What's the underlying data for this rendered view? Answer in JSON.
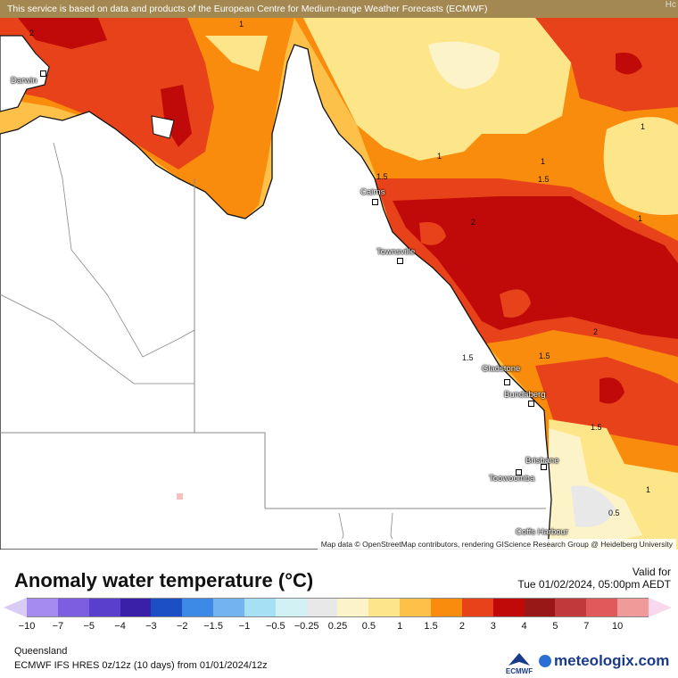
{
  "banner": "This service is based on data and products of the European Centre for Medium-range Weather Forecasts (ECMWF)",
  "corner_text": "Hc",
  "attribution": "Map data © OpenStreetMap contributors, rendering GIScience Research Group @ Heidelberg University",
  "title": "Anomaly water temperature (°C)",
  "valid_label": "Valid for",
  "valid_time": "Tue 01/02/2024, 05:00pm AEDT",
  "region": "Queensland",
  "model_info": "ECMWF IFS HRES 0z/12z (10 days) from 01/01/2024/12z",
  "ecmwf_label": "ECMWF",
  "brand": "meteologix.com",
  "cities": [
    {
      "name": "Darwin"
    },
    {
      "name": "Cairns"
    },
    {
      "name": "Townsville"
    },
    {
      "name": "Gladstone"
    },
    {
      "name": "Bundaberg"
    },
    {
      "name": "Brisbane"
    },
    {
      "name": "Toowoomba"
    },
    {
      "name": "Coffs Harbour"
    }
  ],
  "contour_labels": [
    "2",
    "1",
    "1",
    "1",
    "1.5",
    "1",
    "1",
    "1.5",
    "1.5",
    "2",
    "2",
    "1.5",
    "1.5",
    "1",
    "0.5"
  ],
  "legend": {
    "ticks": [
      "−10",
      "−7",
      "−5",
      "−4",
      "−3",
      "−2",
      "−1.5",
      "−1",
      "−0.5",
      "−0.25",
      "0.25",
      "0.5",
      "1",
      "1.5",
      "2",
      "3",
      "4",
      "5",
      "7",
      "10"
    ],
    "colors": [
      "#a58bf0",
      "#7b5fe0",
      "#5a3fcc",
      "#3a1fa8",
      "#1c4fc4",
      "#3d8ae6",
      "#73b4f0",
      "#a6e0f5",
      "#d2f1f5",
      "#e8e8e8",
      "#fdf3c8",
      "#fde68a",
      "#fdc14a",
      "#f98c0c",
      "#e8421a",
      "#c00a0a",
      "#981818",
      "#c03a3a",
      "#e05a5a",
      "#f09a9a"
    ]
  }
}
